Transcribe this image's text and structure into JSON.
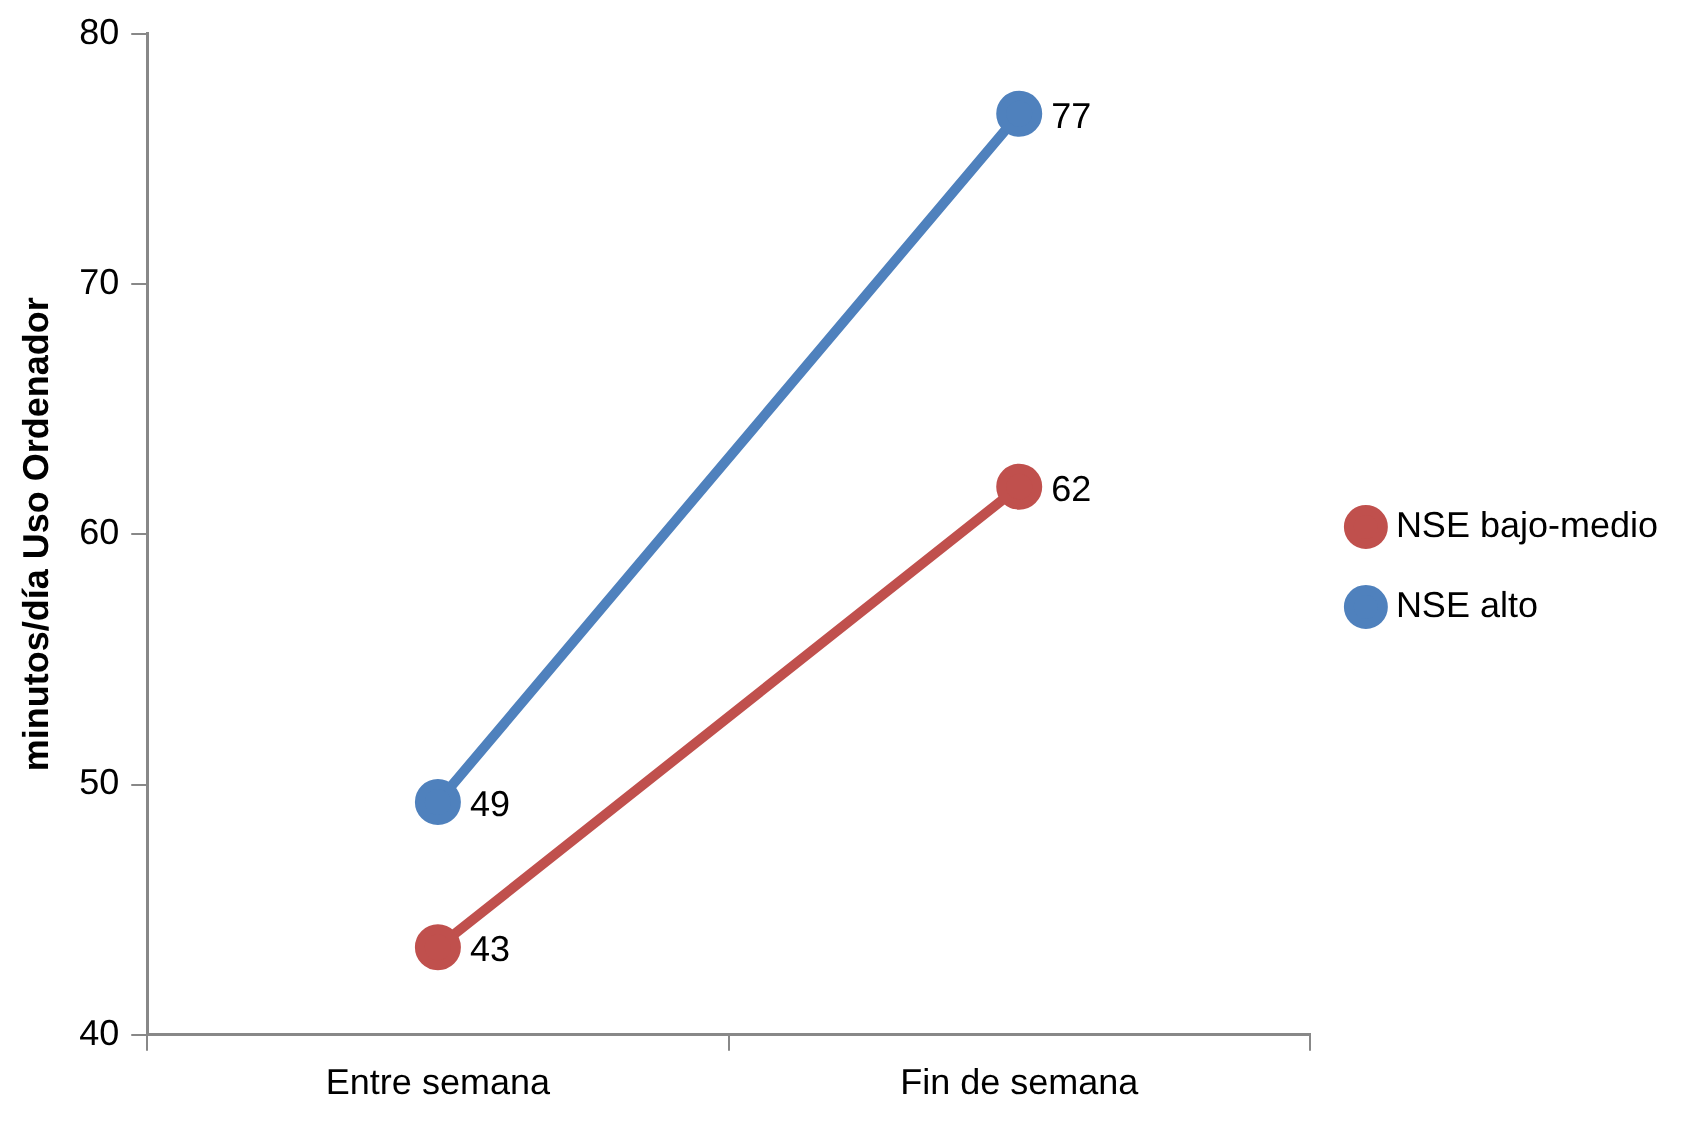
{
  "chart_data": {
    "type": "line",
    "ylabel": "minutos/día Uso Ordenador",
    "categories": [
      "Entre semana",
      "Fin de semana"
    ],
    "series": [
      {
        "name": "NSE bajo-medio",
        "color": "#c0504d",
        "values": [
          43.5,
          61.9
        ],
        "value_labels": [
          "43",
          "62"
        ]
      },
      {
        "name": "NSE alto",
        "color": "#4f81bd",
        "values": [
          49.3,
          76.8
        ],
        "value_labels": [
          "49",
          "77"
        ]
      }
    ],
    "ylim": [
      40,
      80
    ],
    "yticks": [
      40,
      50,
      60,
      70,
      80
    ],
    "grid": false,
    "legend": "right",
    "marker": "circle",
    "line_style": "solid"
  }
}
